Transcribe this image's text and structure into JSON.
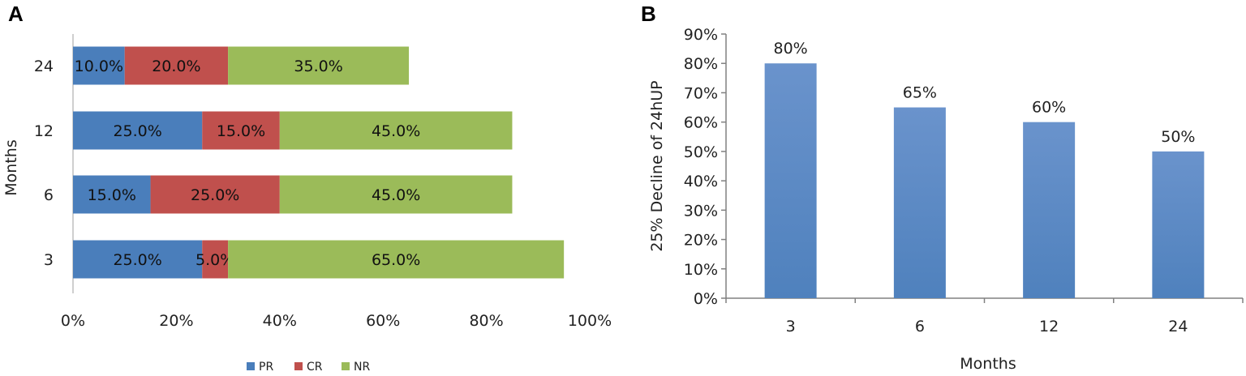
{
  "panels": {
    "a_letter": "A",
    "b_letter": "B"
  },
  "chart_data": [
    {
      "type": "bar",
      "orientation": "horizontal",
      "stacked": true,
      "categories": [
        "3",
        "6",
        "12",
        "24"
      ],
      "series": [
        {
          "name": "PR",
          "values": [
            25,
            15,
            25,
            10
          ],
          "color": "#4a7ebb"
        },
        {
          "name": "CR",
          "values": [
            5,
            25,
            15,
            20
          ],
          "color": "#c0504d"
        },
        {
          "name": "NR",
          "values": [
            65,
            45,
            45,
            35
          ],
          "color": "#9bbb59"
        }
      ],
      "data_labels": [
        [
          "25.0%",
          "15.0%",
          "25.0%",
          "10.0%"
        ],
        [
          "5.0%",
          "25.0%",
          "15.0%",
          "20.0%"
        ],
        [
          "65.0%",
          "45.0%",
          "45.0%",
          "35.0%"
        ]
      ],
      "xlim": [
        0,
        100
      ],
      "xticks": [
        "0%",
        "20%",
        "40%",
        "60%",
        "80%",
        "100%"
      ],
      "xlabel": "",
      "ylabel": "Months",
      "legend": {
        "position": "bottom",
        "entries": [
          "PR",
          "CR",
          "NR"
        ]
      },
      "grid": false
    },
    {
      "type": "bar",
      "orientation": "vertical",
      "categories": [
        "3",
        "6",
        "12",
        "24"
      ],
      "values": [
        80,
        65,
        60,
        50
      ],
      "data_labels": [
        "80%",
        "65%",
        "60%",
        "50%"
      ],
      "color": "#4f81bd",
      "ylim": [
        0,
        90
      ],
      "yticks": [
        "0%",
        "10%",
        "20%",
        "30%",
        "40%",
        "50%",
        "60%",
        "70%",
        "80%",
        "90%"
      ],
      "xlabel": "Months",
      "ylabel": "25% Decline  of 24hUP",
      "grid": false
    }
  ]
}
